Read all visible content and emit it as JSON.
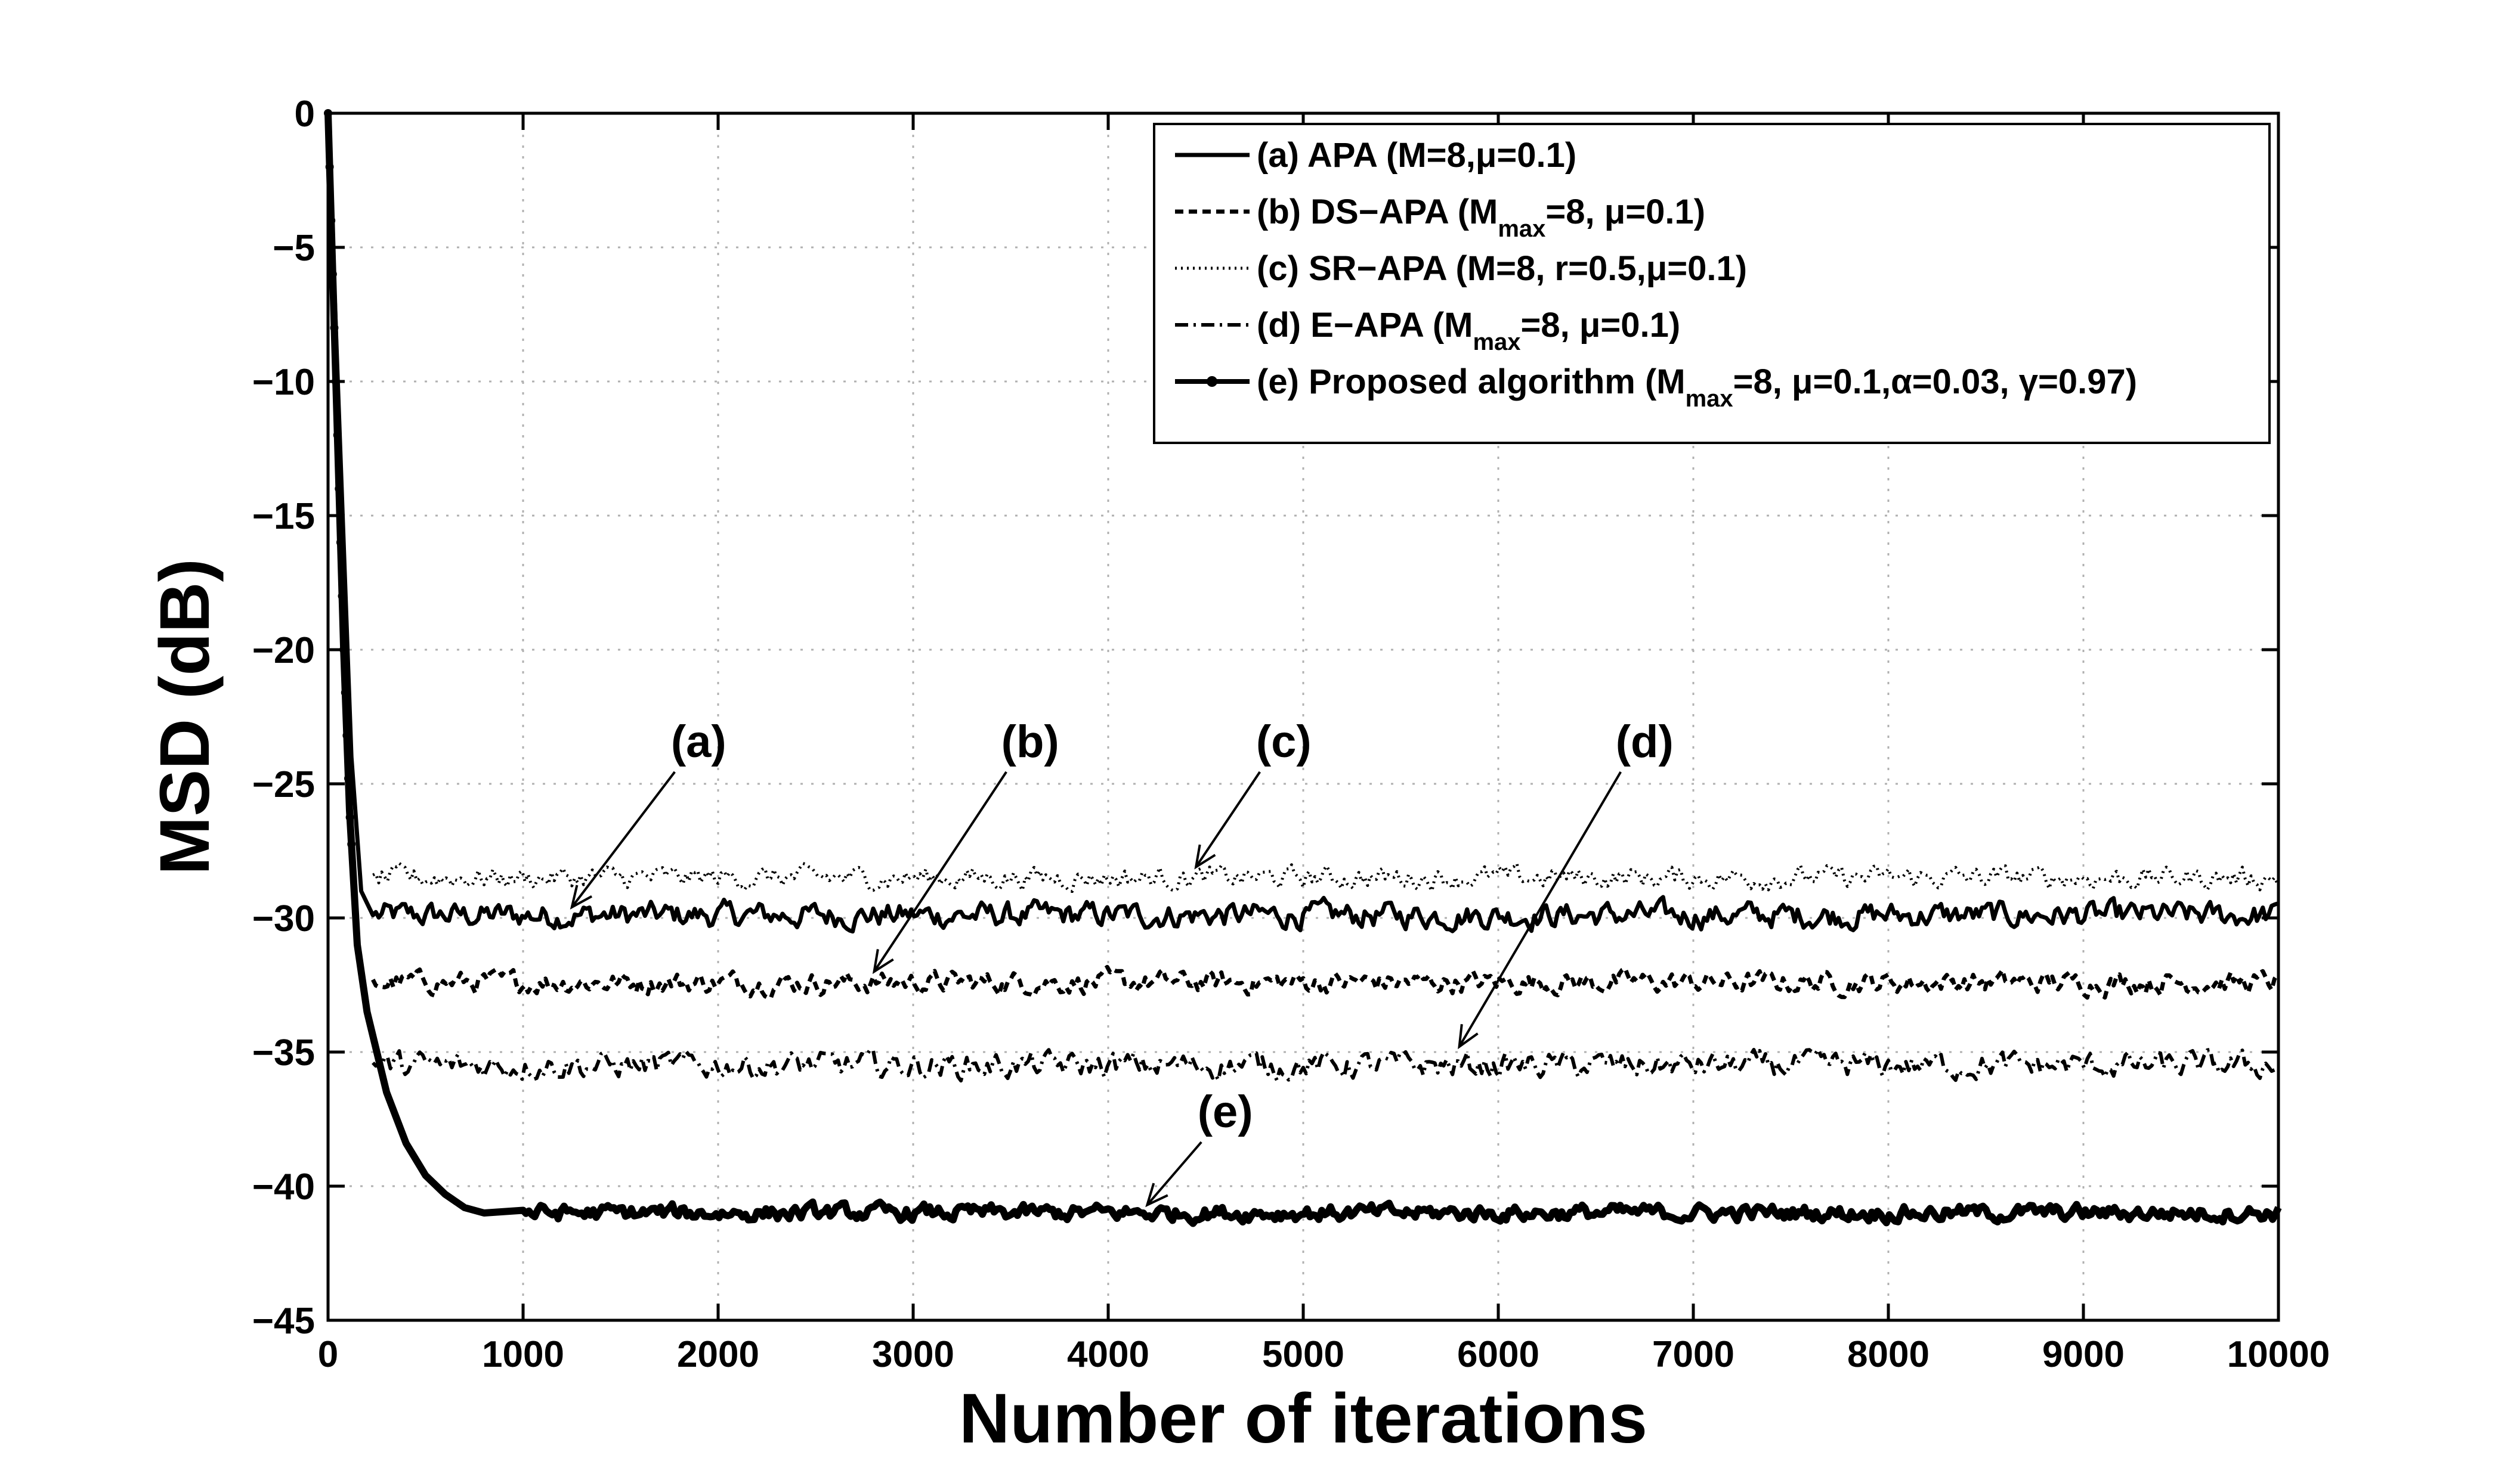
{
  "chart_data": {
    "type": "line",
    "title": "",
    "xlabel": "Number of iterations",
    "ylabel": "MSD (dB)",
    "xlim": [
      0,
      10000
    ],
    "ylim": [
      -45,
      0
    ],
    "xticks": [
      0,
      1000,
      2000,
      3000,
      4000,
      5000,
      6000,
      7000,
      8000,
      9000,
      10000
    ],
    "yticks": [
      0,
      -5,
      -10,
      -15,
      -20,
      -25,
      -30,
      -35,
      -40,
      -45
    ],
    "xtick_labels": [
      "0",
      "1000",
      "2000",
      "3000",
      "4000",
      "5000",
      "6000",
      "7000",
      "8000",
      "9000",
      "10000"
    ],
    "ytick_labels": [
      "0",
      "−5",
      "−10",
      "−15",
      "−20",
      "−25",
      "−30",
      "−35",
      "−40",
      "−45"
    ],
    "grid": true,
    "legend_position": "top-right",
    "legend": [
      {
        "id": "a",
        "style": "solid",
        "parts": [
          [
            "(a) APA (M=8,",
            "n"
          ],
          [
            "μ",
            "n"
          ],
          [
            "=0.1)",
            "n"
          ]
        ]
      },
      {
        "id": "b",
        "style": "dashed",
        "parts": [
          [
            "(b) DS−APA (M",
            "n"
          ],
          [
            "max",
            "sub"
          ],
          [
            "=8, ",
            "n"
          ],
          [
            "μ",
            "n"
          ],
          [
            "=0.1)",
            "n"
          ]
        ]
      },
      {
        "id": "c",
        "style": "dotted",
        "parts": [
          [
            "(c) SR−APA (M=8, r=0.5,",
            "n"
          ],
          [
            "μ",
            "n"
          ],
          [
            "=0.1)",
            "n"
          ]
        ]
      },
      {
        "id": "d",
        "style": "dashdot",
        "parts": [
          [
            "(d) E−APA (M",
            "n"
          ],
          [
            "max",
            "sub"
          ],
          [
            "=8, ",
            "n"
          ],
          [
            "μ",
            "n"
          ],
          [
            "=0.1)",
            "n"
          ]
        ]
      },
      {
        "id": "e",
        "style": "solid-marker",
        "parts": [
          [
            "(e) Proposed algorithm (M",
            "n"
          ],
          [
            "max",
            "sub"
          ],
          [
            "=8, ",
            "n"
          ],
          [
            "μ",
            "n"
          ],
          [
            "=0.1,",
            "n"
          ],
          [
            "α",
            "n"
          ],
          [
            "=0.03, ",
            "n"
          ],
          [
            "γ",
            "n"
          ],
          [
            "=0.97)",
            "n"
          ]
        ]
      }
    ],
    "series": [
      {
        "id": "a",
        "style": "solid",
        "transient": [
          [
            0,
            0
          ],
          [
            60,
            -12
          ],
          [
            120,
            -24
          ],
          [
            170,
            -29
          ],
          [
            230,
            -29.9
          ]
        ],
        "steady": -29.9,
        "noise": 0.35
      },
      {
        "id": "b",
        "style": "dashed",
        "transient": [
          [
            230,
            -32.3
          ]
        ],
        "steady": -32.4,
        "noise": 0.3
      },
      {
        "id": "c",
        "style": "dotted",
        "transient": [
          [
            230,
            -28.4
          ]
        ],
        "steady": -28.5,
        "noise": 0.3
      },
      {
        "id": "d",
        "style": "dashdot",
        "transient": [
          [
            230,
            -35.4
          ]
        ],
        "steady": -35.5,
        "noise": 0.35
      },
      {
        "id": "e",
        "style": "solid-marker",
        "transient": [
          [
            0,
            0
          ],
          [
            40,
            -10
          ],
          [
            80,
            -20
          ],
          [
            110,
            -26
          ],
          [
            150,
            -31
          ],
          [
            200,
            -33.5
          ],
          [
            300,
            -36.5
          ],
          [
            400,
            -38.4
          ],
          [
            500,
            -39.6
          ],
          [
            600,
            -40.3
          ],
          [
            700,
            -40.8
          ],
          [
            800,
            -41
          ],
          [
            1000,
            -40.9
          ]
        ],
        "steady": -41.0,
        "noise": 0.22
      }
    ],
    "annotations": [
      {
        "label": "(a)",
        "text_xy": [
          1900,
          -24
        ],
        "arrow_to": [
          1250,
          -29.6
        ]
      },
      {
        "label": "(b)",
        "text_xy": [
          3600,
          -24
        ],
        "arrow_to": [
          2800,
          -32
        ]
      },
      {
        "label": "(c)",
        "text_xy": [
          4900,
          -24
        ],
        "arrow_to": [
          4450,
          -28.1
        ]
      },
      {
        "label": "(d)",
        "text_xy": [
          6750,
          -24
        ],
        "arrow_to": [
          5800,
          -34.8
        ]
      },
      {
        "label": "(e)",
        "text_xy": [
          4600,
          -37.8
        ],
        "arrow_to": [
          4200,
          -40.7
        ]
      }
    ]
  }
}
